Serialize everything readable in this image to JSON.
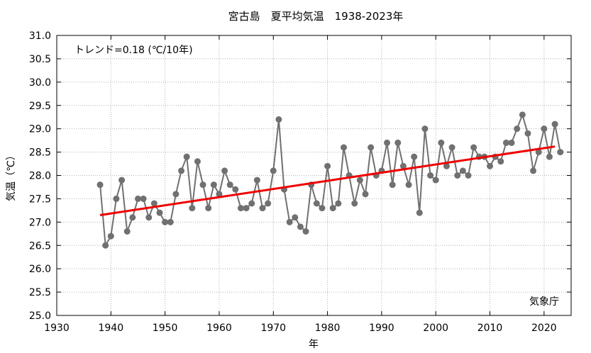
{
  "chart_data": {
    "type": "line",
    "title": "宮古島　夏平均気温　1938-2023年",
    "xlabel": "年",
    "ylabel": "気温（℃）",
    "xlim": [
      1930,
      2025
    ],
    "ylim": [
      25.0,
      31.0
    ],
    "x_ticks": [
      1930,
      1940,
      1950,
      1960,
      1970,
      1980,
      1990,
      2000,
      2010,
      2020
    ],
    "y_ticks": [
      25.0,
      25.5,
      26.0,
      26.5,
      27.0,
      27.5,
      28.0,
      28.5,
      29.0,
      29.5,
      30.0,
      30.5,
      31.0
    ],
    "grid": true,
    "trend_label": "トレンド=0.18 (℃/10年)",
    "source_label": "気象庁",
    "series": [
      {
        "color": "#707070",
        "x": [
          1938,
          1939,
          1940,
          1941,
          1942,
          1943,
          1944,
          1945,
          1946,
          1947,
          1948,
          1949,
          1950,
          1951,
          1952,
          1953,
          1954,
          1955,
          1956,
          1957,
          1958,
          1959,
          1960,
          1961,
          1962,
          1963,
          1964,
          1965,
          1966,
          1967,
          1968,
          1969,
          1970,
          1971,
          1972,
          1973,
          1974,
          1975,
          1976,
          1977,
          1978,
          1979,
          1980,
          1981,
          1982,
          1983,
          1984,
          1985,
          1986,
          1987,
          1988,
          1989,
          1990,
          1991,
          1992,
          1993,
          1994,
          1995,
          1996,
          1997,
          1998,
          1999,
          2000,
          2001,
          2002,
          2003,
          2004,
          2005,
          2006,
          2007,
          2008,
          2009,
          2010,
          2011,
          2012,
          2013,
          2014,
          2015,
          2016,
          2017,
          2018,
          2019,
          2020,
          2021,
          2022,
          2023
        ],
        "y": [
          27.8,
          26.5,
          26.7,
          27.5,
          27.9,
          26.8,
          27.1,
          27.5,
          27.5,
          27.1,
          27.4,
          27.2,
          27.0,
          27.0,
          27.6,
          28.1,
          28.4,
          27.3,
          28.3,
          27.8,
          27.3,
          27.8,
          27.6,
          28.1,
          27.8,
          27.7,
          27.3,
          27.3,
          27.4,
          27.9,
          27.3,
          27.4,
          28.1,
          29.2,
          27.7,
          27.0,
          27.1,
          26.9,
          26.8,
          27.8,
          27.4,
          27.3,
          28.2,
          27.3,
          27.4,
          28.6,
          28.0,
          27.4,
          27.9,
          27.6,
          28.6,
          28.0,
          28.1,
          28.7,
          27.8,
          28.7,
          28.2,
          27.8,
          28.4,
          27.2,
          29.0,
          28.0,
          27.9,
          28.7,
          28.2,
          28.6,
          28.0,
          28.1,
          28.0,
          28.6,
          28.4,
          28.4,
          28.2,
          28.4,
          28.3,
          28.7,
          28.7,
          29.0,
          29.3,
          28.9,
          28.1,
          28.5,
          29.0,
          28.4,
          29.1,
          28.5
        ]
      }
    ],
    "trend": {
      "color": "#ee0000",
      "x": [
        1938,
        2022
      ],
      "y": [
        27.15,
        28.62
      ]
    }
  }
}
